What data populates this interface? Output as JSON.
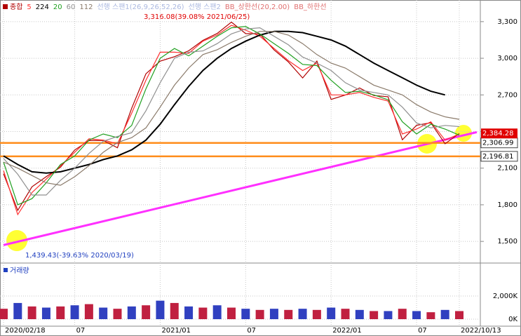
{
  "chart_data": {
    "type": "line",
    "categories": [
      "2020/02/18",
      null,
      null,
      null,
      null,
      "07",
      null,
      null,
      null,
      null,
      null,
      "2021/01",
      null,
      null,
      null,
      null,
      null,
      "07",
      null,
      null,
      null,
      null,
      null,
      "2022/01",
      null,
      null,
      null,
      null,
      null,
      "07",
      null,
      null,
      "2022/10/13"
    ],
    "series": [
      {
        "name": "종합",
        "color": "#b00000",
        "values": [
          2054,
          1754,
          1947,
          2030,
          2108,
          2249,
          2326,
          2327,
          2267,
          2591,
          2873,
          2976,
          3013,
          3061,
          3147,
          3203,
          3296,
          3202,
          3199,
          3068,
          2970,
          2839,
          2977,
          2663,
          2699,
          2757,
          2695,
          2685,
          2332,
          2451,
          2472,
          2300,
          2384
        ]
      },
      {
        "name": "5",
        "color": "#ff3030",
        "values": [
          2080,
          1720,
          1900,
          2010,
          2120,
          2230,
          2340,
          2330,
          2300,
          2550,
          2820,
          3050,
          3050,
          3040,
          3140,
          3190,
          3270,
          3230,
          3180,
          3080,
          2980,
          2900,
          2960,
          2700,
          2700,
          2720,
          2680,
          2650,
          2380,
          2420,
          2480,
          2330,
          2380
        ]
      },
      {
        "name": "224",
        "color": "#000000",
        "values": [
          2200,
          2130,
          2070,
          2060,
          2070,
          2100,
          2130,
          2170,
          2200,
          2250,
          2330,
          2460,
          2620,
          2770,
          2900,
          3000,
          3080,
          3140,
          3190,
          3220,
          3220,
          3210,
          3180,
          3150,
          3100,
          3030,
          2960,
          2900,
          2840,
          2780,
          2730,
          2700,
          null
        ]
      },
      {
        "name": "20",
        "color": "#20a020",
        "values": [
          2150,
          1800,
          1850,
          1980,
          2130,
          2200,
          2330,
          2380,
          2350,
          2450,
          2750,
          3000,
          3080,
          3020,
          3100,
          3180,
          3250,
          3260,
          3200,
          3120,
          3040,
          2950,
          2940,
          2820,
          2720,
          2730,
          2700,
          2660,
          2480,
          2380,
          2460,
          2420,
          2370
        ]
      },
      {
        "name": "60",
        "color": "#909090",
        "values": [
          2180,
          2050,
          1880,
          1880,
          2000,
          2100,
          2220,
          2320,
          2360,
          2390,
          2570,
          2800,
          3000,
          3050,
          3060,
          3120,
          3200,
          3240,
          3250,
          3180,
          3110,
          3010,
          2960,
          2900,
          2800,
          2740,
          2720,
          2700,
          2600,
          2470,
          2430,
          2450,
          2440
        ]
      },
      {
        "name": "112",
        "color": "#8a7a6a",
        "values": [
          2150,
          2100,
          2040,
          1980,
          1960,
          2030,
          2120,
          2230,
          2310,
          2350,
          2430,
          2600,
          2780,
          2920,
          3030,
          3070,
          3130,
          3180,
          3220,
          3220,
          3190,
          3120,
          3030,
          2960,
          2920,
          2850,
          2780,
          2740,
          2700,
          2620,
          2560,
          2520,
          2500
        ]
      }
    ],
    "indicator_labels": [
      "선행 스팬1(26,9,26,52,26)",
      "선행 스팬2",
      "BB_상한선(20,2.00)",
      "BB_하한선"
    ],
    "ylim": [
      1340,
      3460
    ],
    "yticks": [
      {
        "value": 1500,
        "label": "1,500"
      },
      {
        "value": 1800,
        "label": "1,800"
      },
      {
        "value": 2100,
        "label": "2,100"
      },
      {
        "value": 2400,
        "label": "2,400"
      },
      {
        "value": 2700,
        "label": "2,700"
      },
      {
        "value": 3000,
        "label": "3,000"
      },
      {
        "value": 3300,
        "label": "3,300"
      }
    ],
    "grid": true,
    "hlines": [
      {
        "value": 2306.99,
        "label": "2,306.99",
        "color": "#ff8c1a"
      },
      {
        "value": 2196.81,
        "label": "2,196.81",
        "color": "#ff8c1a"
      }
    ],
    "last_price": {
      "value": 2384.28,
      "label": "2,384.28",
      "color": "#e00000"
    },
    "trendline": {
      "color": "#ff30ff",
      "values": [
        1470,
        2395
      ]
    },
    "annotations": [
      "3,316.08(39.08% 2021/06/25)",
      "1,439.43(-39.63% 2020/03/19)"
    ],
    "volume": {
      "title": "거래량",
      "color": "#c02040",
      "values": [
        900,
        1400,
        1100,
        1000,
        1100,
        1200,
        1300,
        1000,
        900,
        1100,
        1200,
        1600,
        1400,
        1100,
        1000,
        1200,
        1000,
        900,
        800,
        900,
        800,
        900,
        800,
        1000,
        900,
        800,
        700,
        700,
        900,
        700,
        600,
        800,
        700
      ],
      "ylim": [
        0,
        4550
      ],
      "yticks": [
        {
          "value": 0,
          "label": "0K"
        },
        {
          "value": 2000,
          "label": "2,000K"
        }
      ]
    }
  }
}
